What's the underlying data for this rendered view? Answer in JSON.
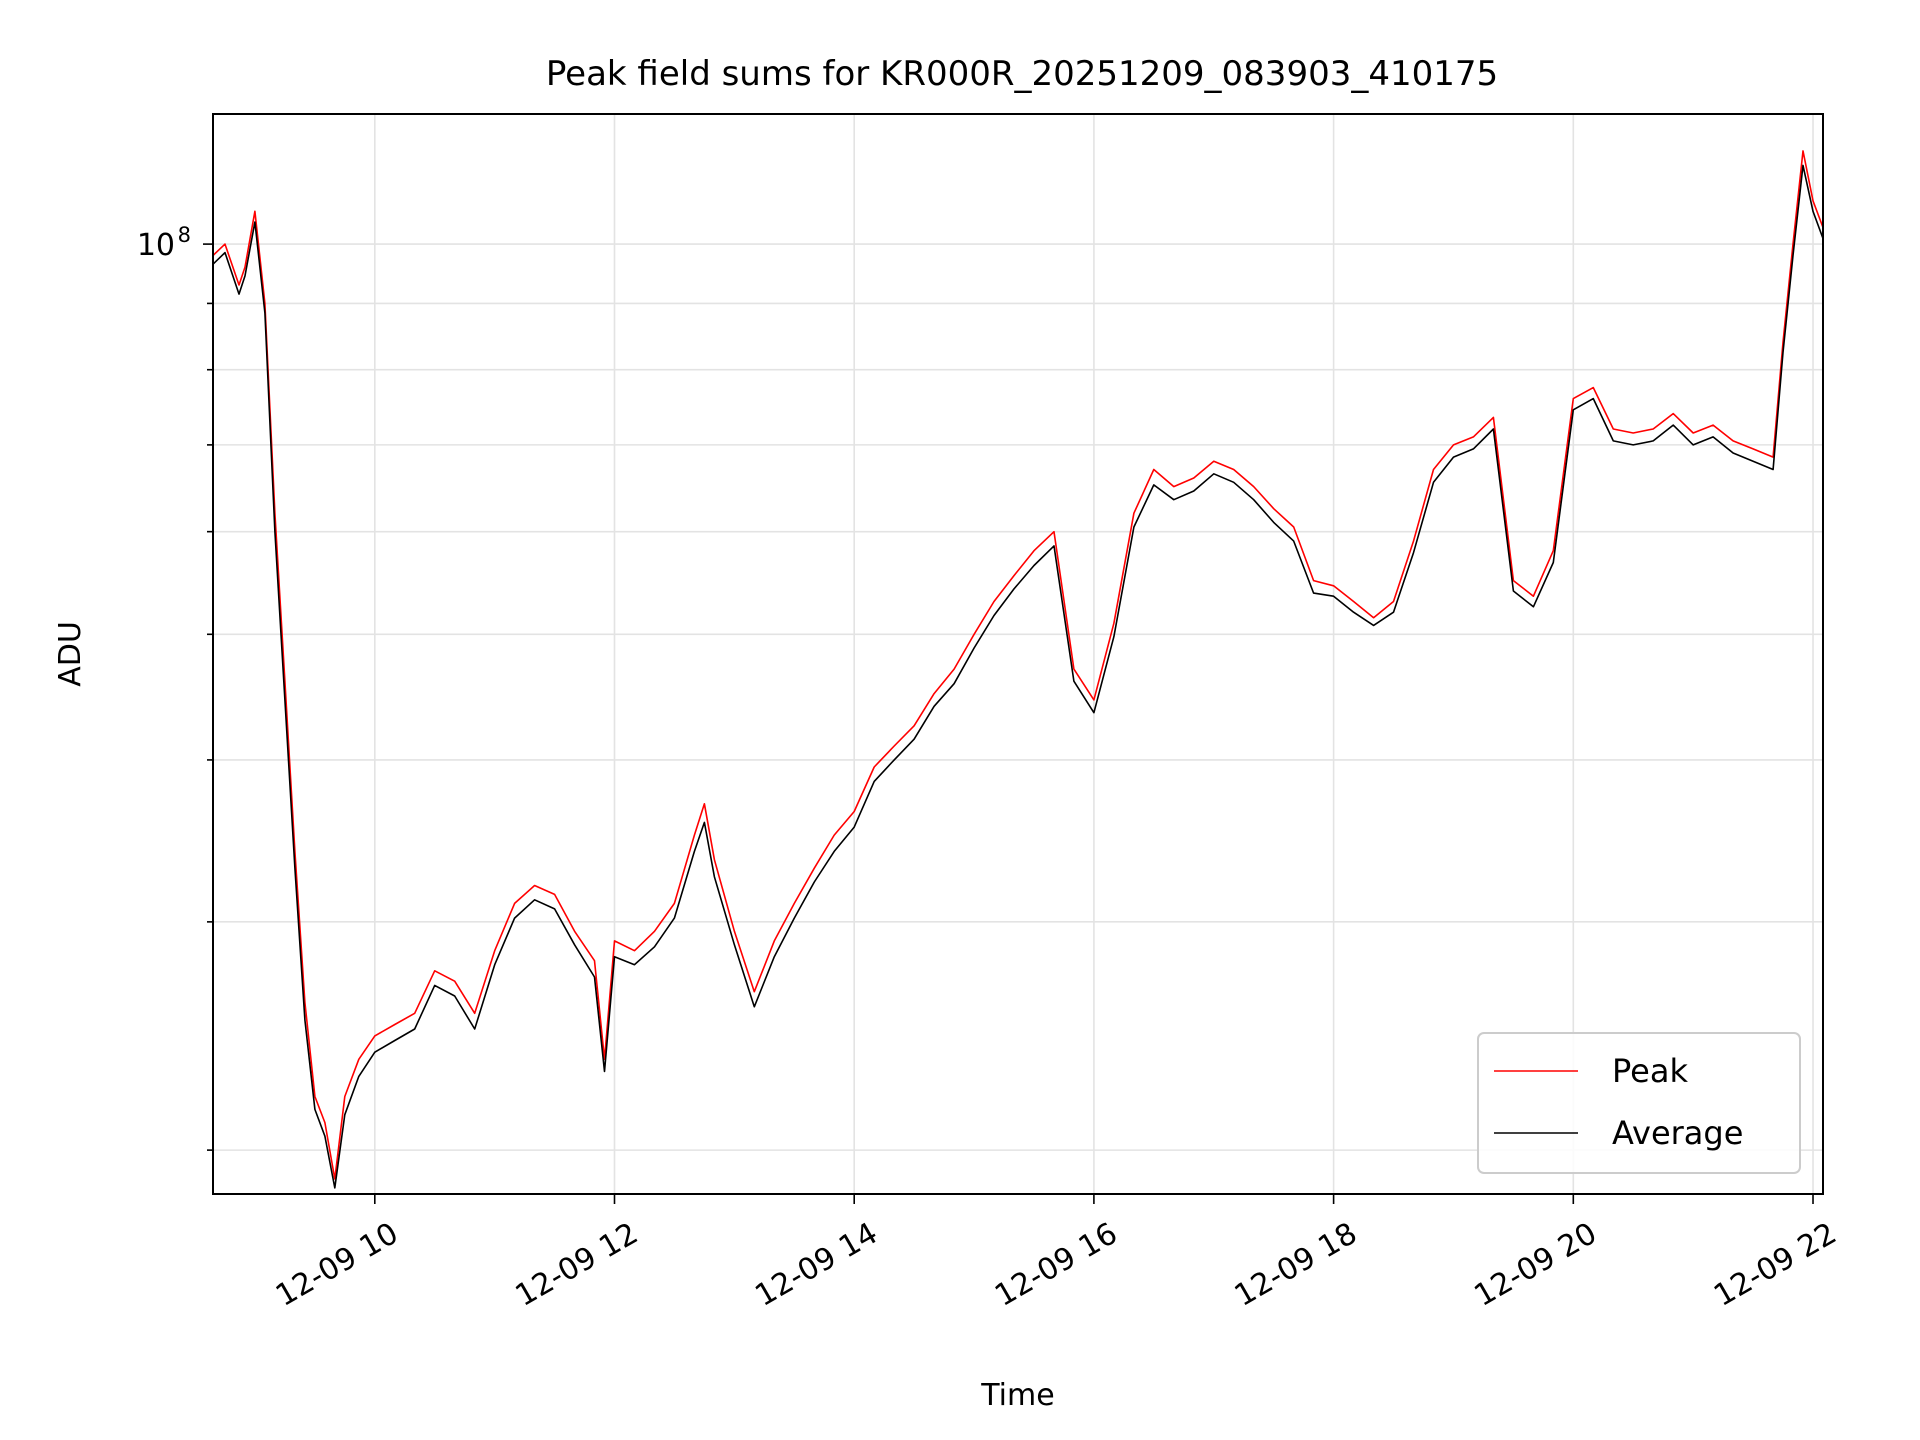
{
  "chart_data": {
    "type": "line",
    "title": "Peak field sums for KR000R_20251209_083903_410175",
    "xlabel": "Time",
    "ylabel": "ADU",
    "y_scale": "log",
    "y_tick_labels": [
      {
        "base": "10",
        "exp": "8"
      }
    ],
    "x_tick_labels": [
      "12-09 10",
      "12-09 12",
      "12-09 14",
      "12-09 16",
      "12-09 18",
      "12-09 20",
      "12-09 22"
    ],
    "xlim": [
      "12-09 08:39",
      "12-09 22:05"
    ],
    "ylim": [
      18500000,
      126000000
    ],
    "grid": true,
    "legend_position": "lower right",
    "x": [
      "08:39",
      "08:45",
      "08:52",
      "08:55",
      "09:00",
      "09:05",
      "09:10",
      "09:15",
      "09:20",
      "09:25",
      "09:30",
      "09:35",
      "09:40",
      "09:45",
      "09:52",
      "10:00",
      "10:10",
      "10:20",
      "10:30",
      "10:40",
      "10:50",
      "11:00",
      "11:10",
      "11:20",
      "11:30",
      "11:40",
      "11:50",
      "11:55",
      "12:00",
      "12:10",
      "12:20",
      "12:30",
      "12:40",
      "12:45",
      "12:50",
      "13:00",
      "13:10",
      "13:20",
      "13:30",
      "13:40",
      "13:50",
      "14:00",
      "14:10",
      "14:20",
      "14:30",
      "14:40",
      "14:50",
      "15:00",
      "15:10",
      "15:20",
      "15:30",
      "15:40",
      "15:50",
      "16:00",
      "16:10",
      "16:20",
      "16:30",
      "16:40",
      "16:50",
      "17:00",
      "17:10",
      "17:20",
      "17:30",
      "17:40",
      "17:50",
      "18:00",
      "18:10",
      "18:20",
      "18:30",
      "18:40",
      "18:50",
      "19:00",
      "19:10",
      "19:20",
      "19:30",
      "19:40",
      "19:50",
      "20:00",
      "20:10",
      "20:20",
      "20:30",
      "20:40",
      "20:50",
      "21:00",
      "21:10",
      "21:20",
      "21:30",
      "21:40",
      "21:45",
      "21:50",
      "21:55",
      "22:00",
      "22:05"
    ],
    "series": [
      {
        "name": "Peak",
        "color": "#ff0000",
        "values": [
          98000000,
          100000000,
          93000000,
          96000000,
          106000000,
          90000000,
          62000000,
          46000000,
          34000000,
          26000000,
          22000000,
          21000000,
          19000000,
          22000000,
          23500000,
          24500000,
          25000000,
          25500000,
          27500000,
          27000000,
          25500000,
          28500000,
          31000000,
          32000000,
          31500000,
          29500000,
          28000000,
          23500000,
          29000000,
          28500000,
          29500000,
          31000000,
          35000000,
          37000000,
          33500000,
          29500000,
          26500000,
          29000000,
          31000000,
          33000000,
          35000000,
          36500000,
          39500000,
          41000000,
          42500000,
          45000000,
          47000000,
          50000000,
          53000000,
          55500000,
          58000000,
          60000000,
          47000000,
          44500000,
          51000000,
          62000000,
          67000000,
          65000000,
          66000000,
          68000000,
          67000000,
          65000000,
          62500000,
          60500000,
          55000000,
          54500000,
          53000000,
          51500000,
          53000000,
          59000000,
          67000000,
          70000000,
          71000000,
          73500000,
          55000000,
          53500000,
          58000000,
          76000000,
          77500000,
          72000000,
          71500000,
          72000000,
          74000000,
          71500000,
          72500000,
          70500000,
          69500000,
          68500000,
          84000000,
          100000000,
          118000000,
          108000000,
          103000000
        ]
      },
      {
        "name": "Average",
        "color": "#000000",
        "values": [
          96500000,
          98500000,
          91500000,
          94500000,
          104000000,
          88500000,
          60000000,
          44500000,
          33000000,
          25200000,
          21500000,
          20500000,
          18700000,
          21300000,
          22800000,
          23800000,
          24300000,
          24800000,
          26800000,
          26300000,
          24800000,
          27800000,
          30200000,
          31200000,
          30700000,
          28800000,
          27200000,
          23000000,
          28200000,
          27800000,
          28700000,
          30200000,
          34000000,
          35800000,
          32500000,
          28800000,
          25800000,
          28200000,
          30200000,
          32200000,
          34000000,
          35500000,
          38500000,
          40000000,
          41500000,
          44000000,
          45800000,
          48800000,
          51700000,
          54200000,
          56500000,
          58500000,
          46000000,
          43500000,
          49800000,
          60500000,
          65200000,
          63500000,
          64500000,
          66500000,
          65500000,
          63500000,
          61000000,
          59000000,
          53800000,
          53500000,
          52000000,
          50800000,
          52000000,
          57800000,
          65500000,
          68500000,
          69500000,
          72000000,
          54000000,
          52500000,
          56800000,
          74500000,
          76000000,
          70500000,
          70000000,
          70500000,
          72500000,
          70000000,
          71000000,
          69000000,
          68000000,
          67000000,
          82500000,
          98000000,
          115000000,
          106000000,
          101000000
        ]
      }
    ]
  }
}
